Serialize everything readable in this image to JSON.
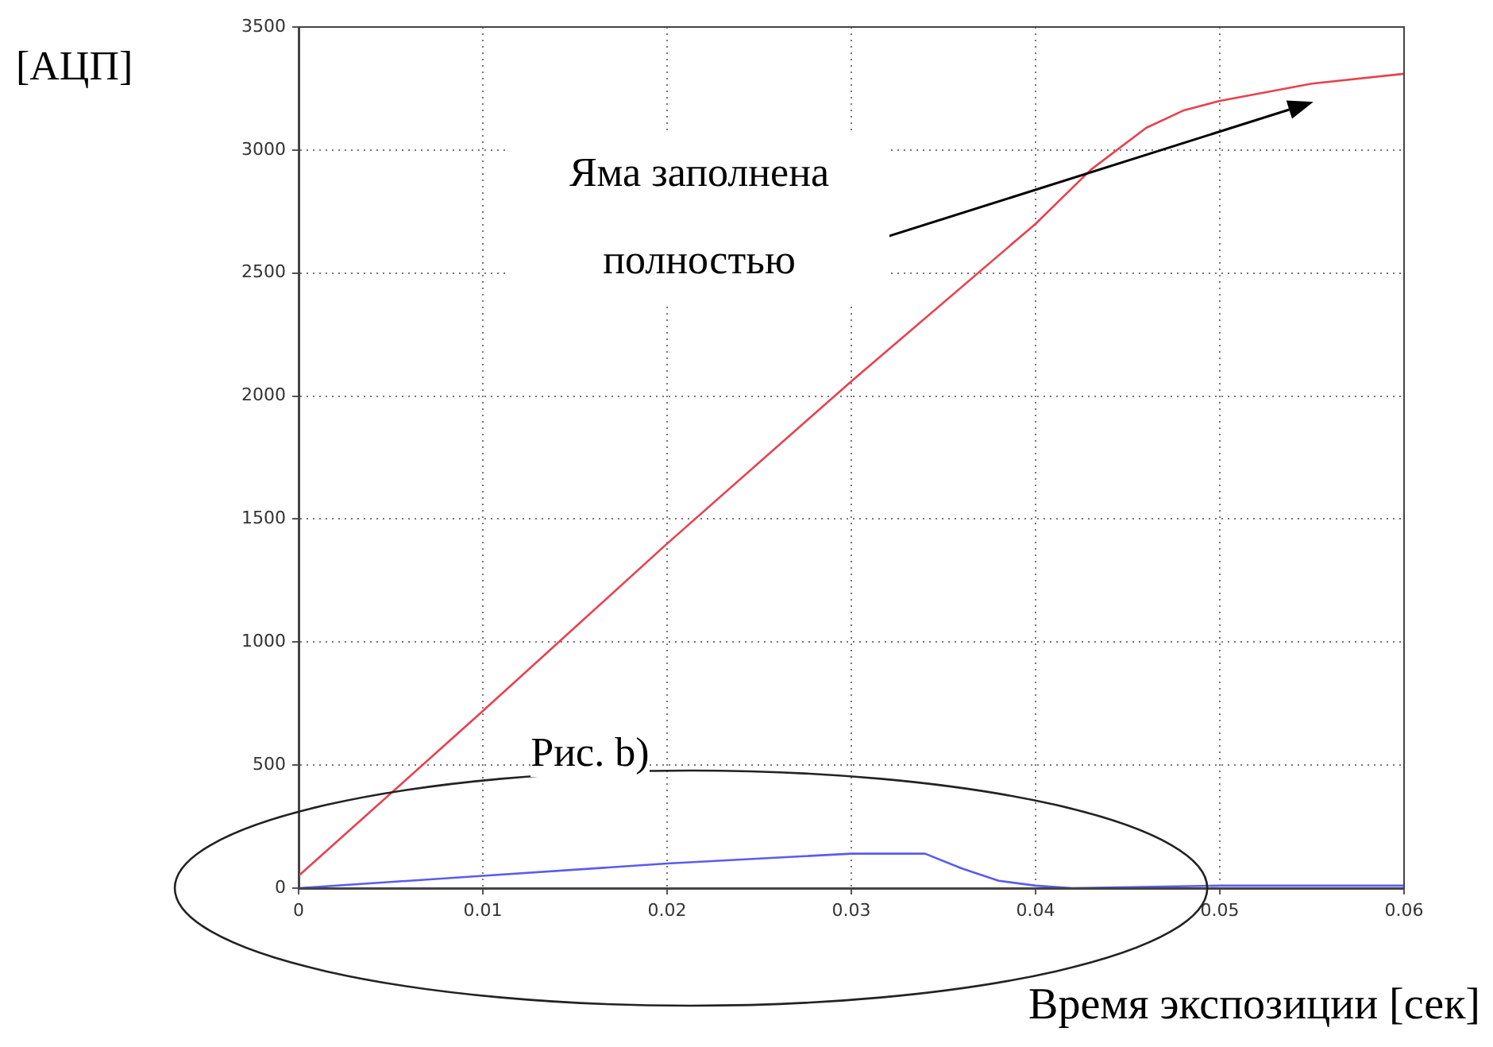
{
  "chart_data": {
    "type": "line",
    "xlabel": "Время экспозиции [сек]",
    "ylabel": "[АЦП]",
    "xlim": [
      0,
      0.06
    ],
    "xticks": [
      0,
      0.01,
      0.02,
      0.03,
      0.04,
      0.05,
      0.06
    ],
    "ylim": [
      0,
      3500
    ],
    "yticks": [
      0,
      500,
      1000,
      1500,
      2000,
      2500,
      3000,
      3500
    ],
    "grid": true,
    "marker": "none",
    "line_style": "solid",
    "series": [
      {
        "color": "#e8414f",
        "x": [
          0,
          0.01,
          0.02,
          0.03,
          0.04,
          0.043,
          0.046,
          0.048,
          0.05,
          0.055,
          0.06
        ],
        "values": [
          50,
          720,
          1400,
          2060,
          2700,
          2920,
          3090,
          3160,
          3200,
          3270,
          3310
        ]
      },
      {
        "color": "#5b5bee",
        "x": [
          0,
          0.01,
          0.02,
          0.03,
          0.034,
          0.036,
          0.038,
          0.04,
          0.042,
          0.05,
          0.06
        ],
        "values": [
          0,
          50,
          100,
          140,
          140,
          80,
          30,
          10,
          0,
          10,
          10
        ]
      }
    ],
    "annotations": [
      "Яма заполнена полностью",
      "Рис. b)"
    ]
  }
}
